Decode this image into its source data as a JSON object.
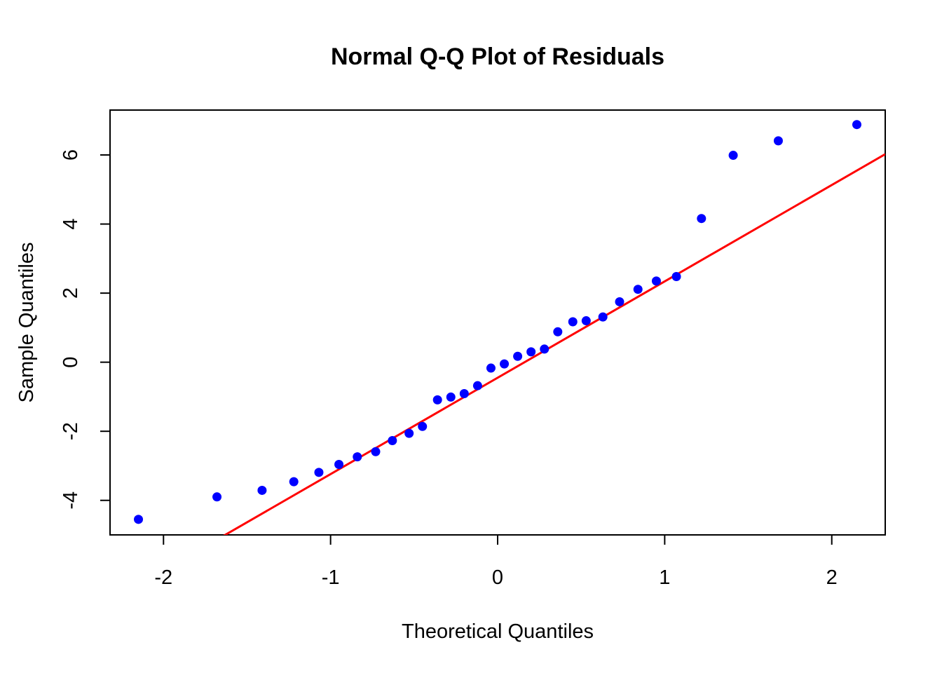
{
  "chart_data": {
    "type": "scatter",
    "title": "Normal Q-Q Plot of Residuals",
    "xlabel": "Theoretical Quantiles",
    "ylabel": "Sample Quantiles",
    "xlim": [
      -2.32,
      2.32
    ],
    "ylim": [
      -5.0,
      7.3
    ],
    "x_ticks": [
      -2,
      -1,
      0,
      1,
      2
    ],
    "x_tick_labels": [
      "-2",
      "-1",
      "0",
      "1",
      "2"
    ],
    "y_ticks": [
      -4,
      -2,
      0,
      2,
      4,
      6
    ],
    "y_tick_labels": [
      "-4",
      "-2",
      "0",
      "2",
      "4",
      "6"
    ],
    "grid": false,
    "point_color": "#0000ff",
    "line_color": "#ff0000",
    "points": [
      {
        "x": -2.15,
        "y": -4.55
      },
      {
        "x": -1.68,
        "y": -3.9
      },
      {
        "x": -1.41,
        "y": -3.71
      },
      {
        "x": -1.22,
        "y": -3.46
      },
      {
        "x": -1.07,
        "y": -3.19
      },
      {
        "x": -0.95,
        "y": -2.96
      },
      {
        "x": -0.84,
        "y": -2.74
      },
      {
        "x": -0.73,
        "y": -2.59
      },
      {
        "x": -0.63,
        "y": -2.27
      },
      {
        "x": -0.53,
        "y": -2.06
      },
      {
        "x": -0.45,
        "y": -1.86
      },
      {
        "x": -0.36,
        "y": -1.09
      },
      {
        "x": -0.28,
        "y": -1.01
      },
      {
        "x": -0.2,
        "y": -0.91
      },
      {
        "x": -0.12,
        "y": -0.68
      },
      {
        "x": -0.04,
        "y": -0.17
      },
      {
        "x": 0.04,
        "y": -0.05
      },
      {
        "x": 0.12,
        "y": 0.17
      },
      {
        "x": 0.2,
        "y": 0.3
      },
      {
        "x": 0.28,
        "y": 0.38
      },
      {
        "x": 0.36,
        "y": 0.88
      },
      {
        "x": 0.45,
        "y": 1.17
      },
      {
        "x": 0.53,
        "y": 1.2
      },
      {
        "x": 0.63,
        "y": 1.31
      },
      {
        "x": 0.73,
        "y": 1.75
      },
      {
        "x": 0.84,
        "y": 2.11
      },
      {
        "x": 0.95,
        "y": 2.35
      },
      {
        "x": 1.07,
        "y": 2.48
      },
      {
        "x": 1.22,
        "y": 4.16
      },
      {
        "x": 1.41,
        "y": 5.99
      },
      {
        "x": 1.68,
        "y": 6.41
      },
      {
        "x": 2.15,
        "y": 6.88
      }
    ],
    "reference_line": {
      "intercept": -0.45,
      "slope": 2.79
    }
  }
}
